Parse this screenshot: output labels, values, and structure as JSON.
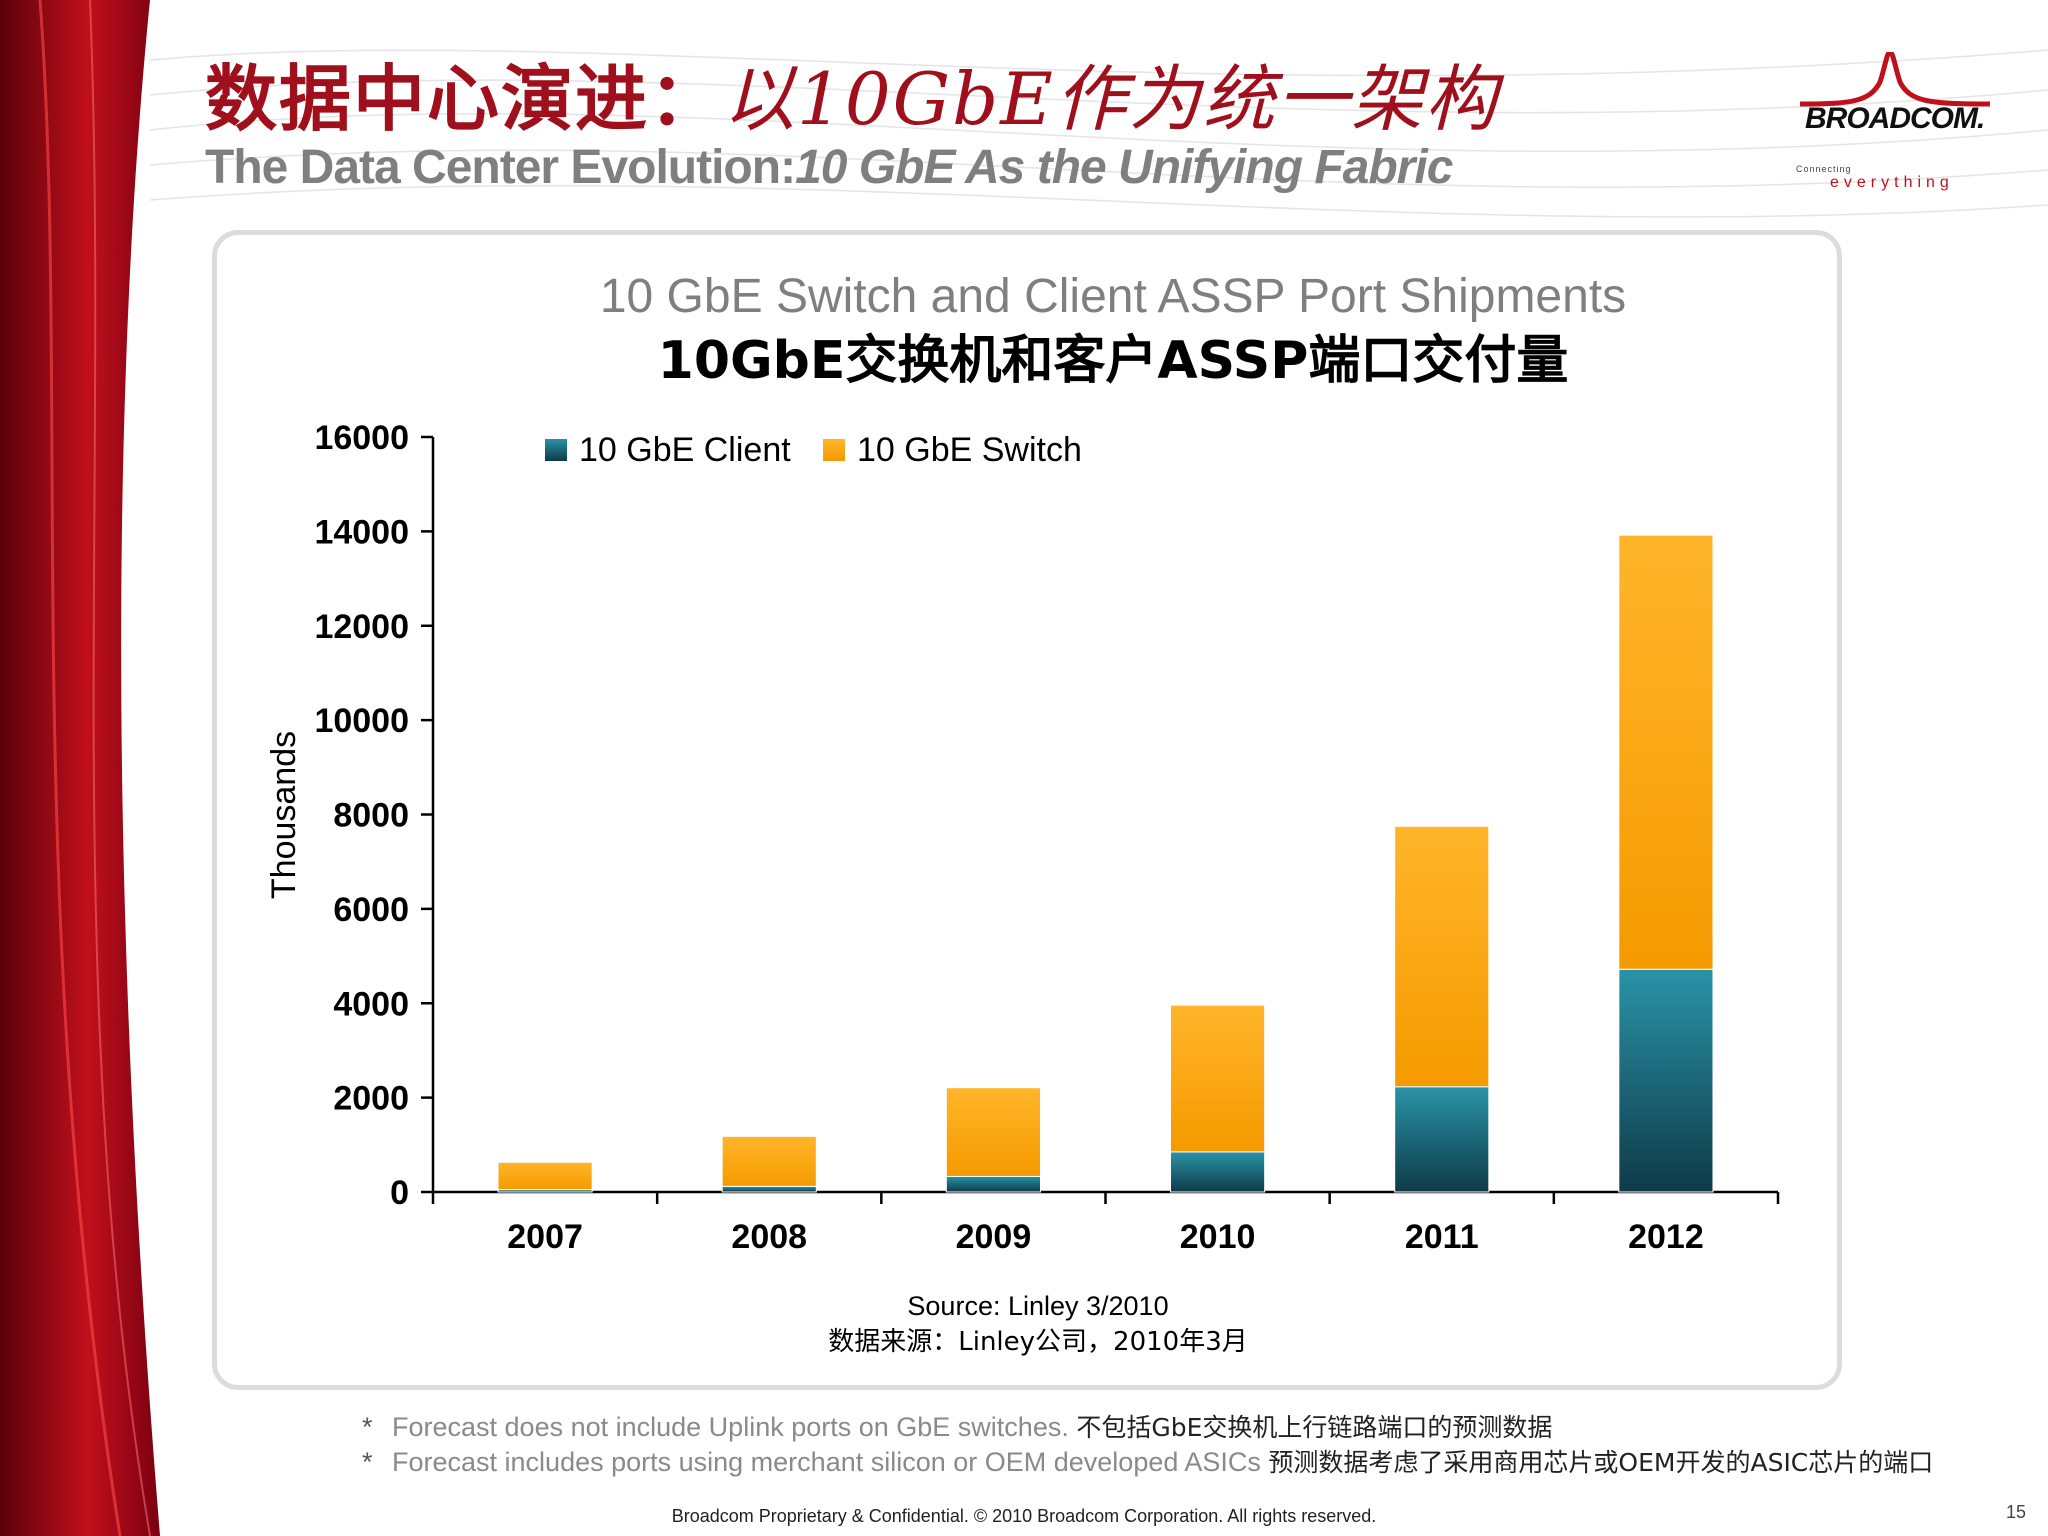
{
  "slide": {
    "title_cn_bold": "数据中心演进：",
    "title_cn_italic": "以10GbE作为统一架构",
    "title_en_plain": "The Data Center Evolution:",
    "title_en_italic": "10 GbE As the Unifying Fabric",
    "logo_text": "BROADCOM.",
    "logo_tagline_1": "Connecting",
    "logo_tagline_2": "everything",
    "notes": [
      {
        "en": "Forecast does not include Uplink ports on GbE switches.",
        "cn": "不包括GbE交换机上行链路端口的预测数据"
      },
      {
        "en": "Forecast includes ports using merchant silicon or OEM developed ASICs",
        "cn": "预测数据考虑了采用商用芯片或OEM开发的ASIC芯片的端口"
      }
    ],
    "note_marker": "*",
    "footer": "Broadcom Proprietary & Confidential.  © 2010 Broadcom Corporation.  All rights reserved.",
    "page_number": "15"
  },
  "chart_data": {
    "type": "bar",
    "stacked": true,
    "title": "10 GbE Switch and Client ASSP Port Shipments",
    "subtitle": "10GbE交换机和客户ASSP端口交付量",
    "xlabel": "",
    "ylabel": "Thousands",
    "ylim": [
      0,
      16000
    ],
    "yticks": [
      0,
      2000,
      4000,
      6000,
      8000,
      10000,
      12000,
      14000,
      16000
    ],
    "categories": [
      "2007",
      "2008",
      "2009",
      "2010",
      "2011",
      "2012"
    ],
    "series": [
      {
        "name": "10 GbE Client",
        "color": "#1f7a8c",
        "values": [
          50,
          120,
          330,
          850,
          2230,
          4720
        ]
      },
      {
        "name": "10 GbE Switch",
        "color": "#f8a41c",
        "values": [
          580,
          1060,
          1880,
          3110,
          5520,
          9200
        ]
      }
    ],
    "legend": "top-left",
    "grid": false,
    "source_en": "Source: Linley  3/2010",
    "source_cn": "数据来源：Linley公司，2010年3月"
  }
}
